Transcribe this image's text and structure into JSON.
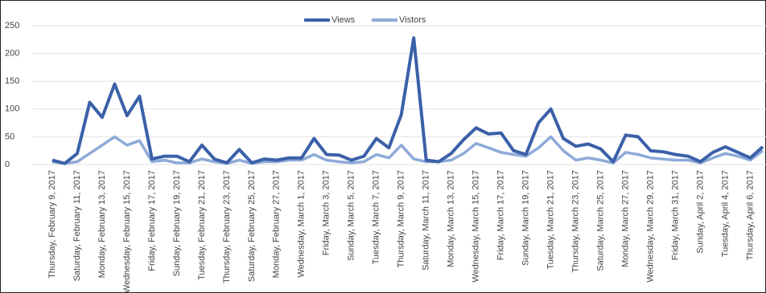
{
  "chart_data": {
    "type": "line",
    "categories": [
      "Thursday, February 9, 2017",
      null,
      "Saturday, February 11, 2017",
      null,
      "Monday, February 13, 2017",
      null,
      "Wednesday, February 15, 2017",
      null,
      "Friday, February 17, 2017",
      null,
      "Sunday, February 19, 2017",
      null,
      "Tuesday, February 21, 2017",
      null,
      "Thursday, February 23, 2017",
      null,
      "Saturday, February 25, 2017",
      null,
      "Monday, February 27, 2017",
      null,
      "Wednesday, March 1, 2017",
      null,
      "Friday, March 3, 2017",
      null,
      "Sunday, March 5, 2017",
      null,
      "Tuesday, March 7, 2017",
      null,
      "Thursday, March 9, 2017",
      null,
      "Saturday, March 11, 2017",
      null,
      "Monday, March 13, 2017",
      null,
      "Wednesday, March 15, 2017",
      null,
      "Friday, March 17, 2017",
      null,
      "Sunday, March 19, 2017",
      null,
      "Tuesday, March 21, 2017",
      null,
      "Thursday, March 23, 2017",
      null,
      "Saturday, March 25, 2017",
      null,
      "Monday, March 27, 2017",
      null,
      "Wednesday, March 29, 2017",
      null,
      "Friday, March 31, 2017",
      null,
      "Sunday, April 2, 2017",
      null,
      "Tuesday, April 4, 2017",
      null,
      "Thursday, April 6, 2017",
      null
    ],
    "series": [
      {
        "name": "Views",
        "color": "#3a60a8",
        "values": [
          8,
          2,
          20,
          112,
          85,
          145,
          88,
          123,
          10,
          15,
          15,
          5,
          35,
          10,
          3,
          27,
          3,
          10,
          8,
          12,
          12,
          47,
          18,
          17,
          8,
          15,
          47,
          30,
          90,
          228,
          8,
          5,
          20,
          45,
          66,
          55,
          57,
          25,
          18,
          75,
          100,
          47,
          33,
          37,
          28,
          5,
          53,
          50,
          25,
          23,
          18,
          15,
          5,
          22,
          32,
          22,
          12,
          32
        ]
      },
      {
        "name": "Vistors",
        "color": "#8eaad8",
        "values": [
          5,
          2,
          5,
          20,
          35,
          50,
          35,
          43,
          5,
          8,
          3,
          3,
          10,
          5,
          2,
          8,
          2,
          5,
          5,
          8,
          8,
          18,
          8,
          5,
          3,
          5,
          18,
          12,
          35,
          10,
          5,
          5,
          8,
          20,
          38,
          30,
          22,
          18,
          15,
          30,
          50,
          25,
          8,
          12,
          8,
          3,
          22,
          18,
          12,
          10,
          8,
          8,
          3,
          12,
          20,
          15,
          8,
          25
        ]
      }
    ],
    "ylim": [
      0,
      250
    ],
    "yticks": [
      0,
      50,
      100,
      150,
      200,
      250
    ],
    "grid": true,
    "legend": "top"
  }
}
